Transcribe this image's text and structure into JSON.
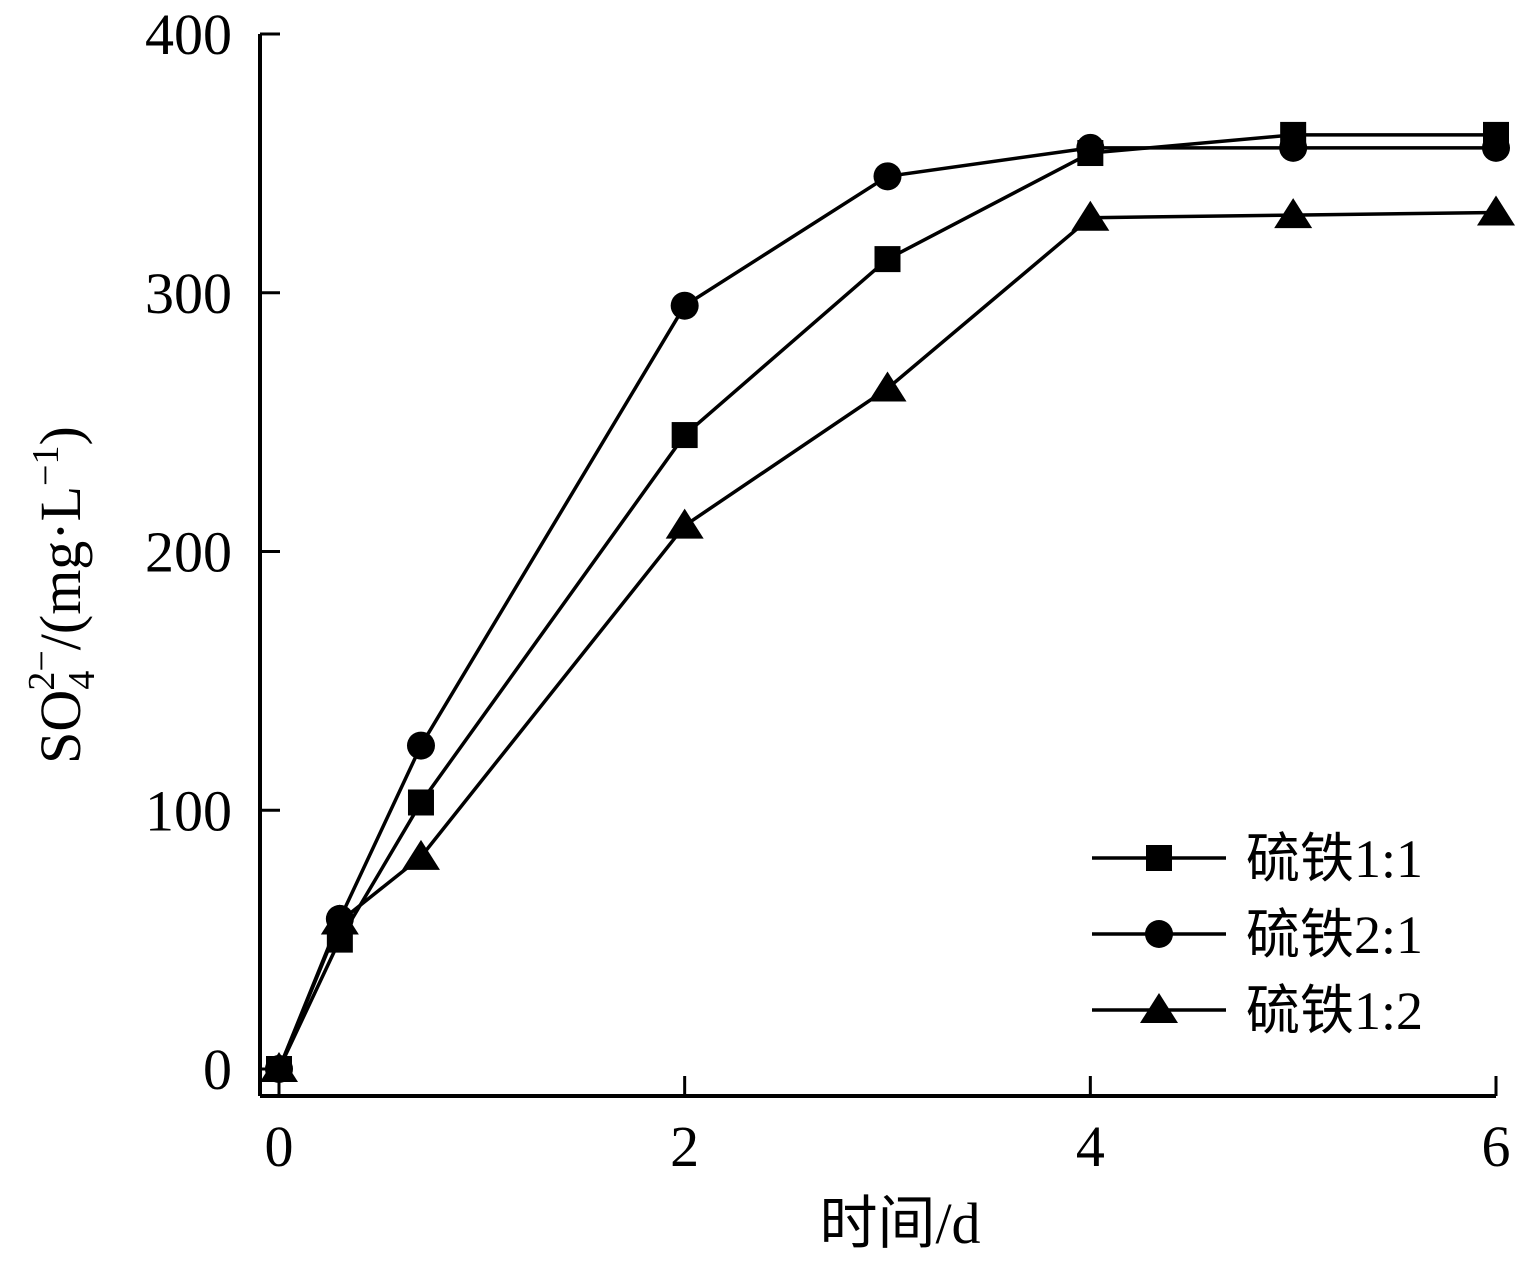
{
  "chart_data": {
    "type": "line",
    "title": "",
    "xlabel": "时间/d",
    "ylabel": {
      "base": "SO",
      "subscript": "4",
      "superscript": "2−",
      "rest": "/(mg·L",
      "exponent": "−1",
      "close": ")"
    },
    "xlim": [
      0,
      6
    ],
    "ylim": [
      0,
      400
    ],
    "x_ticks": [
      "0",
      "2",
      "4",
      "6"
    ],
    "y_ticks": [
      "0",
      "100",
      "200",
      "300",
      "400"
    ],
    "grid": false,
    "legend_position": "bottom-right",
    "colors": {
      "line": "#000000",
      "background": "#ffffff"
    },
    "series": [
      {
        "name": "硫铁1:1",
        "marker": "square",
        "x": [
          0,
          0.3,
          0.7,
          2,
          3,
          4,
          5,
          6
        ],
        "y": [
          0,
          50,
          103,
          245,
          313,
          354,
          361,
          361
        ]
      },
      {
        "name": "硫铁2:1",
        "marker": "circle",
        "x": [
          0,
          0.3,
          0.7,
          2,
          3,
          4,
          5,
          6
        ],
        "y": [
          0,
          58,
          125,
          295,
          345,
          356,
          356,
          356
        ]
      },
      {
        "name": "硫铁1:2",
        "marker": "triangle",
        "x": [
          0,
          0.3,
          0.7,
          2,
          3,
          4,
          5,
          6
        ],
        "y": [
          0,
          57,
          82,
          210,
          263,
          329,
          330,
          331
        ]
      }
    ]
  }
}
